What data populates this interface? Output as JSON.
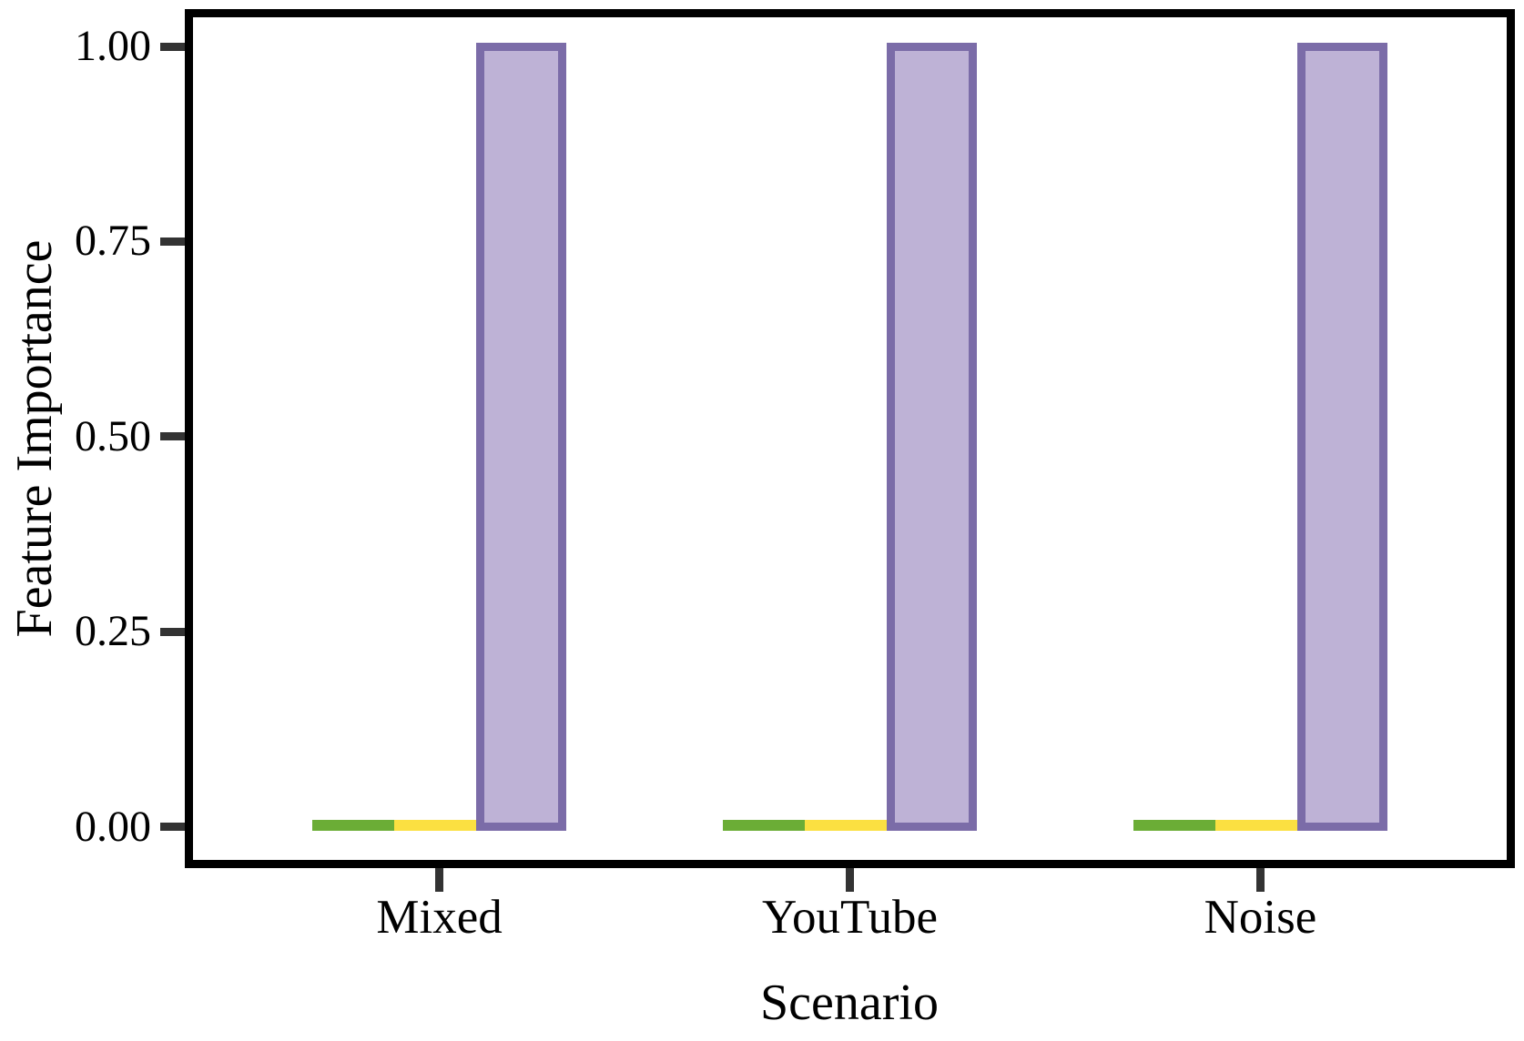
{
  "figure": {
    "background": "#ffffff",
    "axis_color": "#000000",
    "tick_color": "#333333",
    "text_color": "#000000"
  },
  "chart_data": {
    "type": "bar",
    "title": "",
    "xlabel": "Scenario",
    "ylabel": "Feature Importance",
    "categories": [
      "Mixed",
      "YouTube",
      "Noise"
    ],
    "series": [
      {
        "name": "green-series",
        "color": "#6BAD36",
        "border_color": "#6BAD36",
        "values": [
          0.003,
          0.003,
          0.003
        ]
      },
      {
        "name": "yellow-series",
        "color": "#FBE041",
        "border_color": "#FBE041",
        "values": [
          0.003,
          0.003,
          0.003
        ]
      },
      {
        "name": "purple-series",
        "color": "#BEB2D6",
        "border_color": "#7B6CA8",
        "values": [
          1.0,
          1.0,
          1.0
        ]
      }
    ],
    "ylim": [
      0,
      1
    ],
    "y_ticks": [
      {
        "value": 0.0,
        "label": "0.00"
      },
      {
        "value": 0.25,
        "label": "0.25"
      },
      {
        "value": 0.5,
        "label": "0.50"
      },
      {
        "value": 0.75,
        "label": "0.75"
      },
      {
        "value": 1.0,
        "label": "1.00"
      }
    ],
    "grid": "off",
    "legend": "none"
  }
}
